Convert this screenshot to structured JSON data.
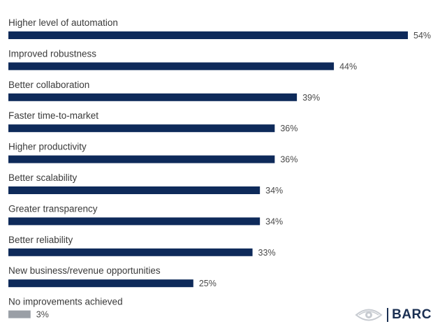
{
  "chart_data": {
    "type": "bar",
    "orientation": "horizontal",
    "categories": [
      "Higher level of automation",
      "Improved robustness",
      "Better collaboration",
      "Faster time-to-market",
      "Higher productivity",
      "Better scalability",
      "Greater transparency",
      "Better reliability",
      "New business/revenue opportunities",
      "No improvements achieved"
    ],
    "values": [
      54,
      44,
      39,
      36,
      36,
      34,
      34,
      33,
      25,
      3
    ],
    "value_labels": [
      "54%",
      "44%",
      "39%",
      "36%",
      "36%",
      "34%",
      "34%",
      "33%",
      "25%",
      "3%"
    ],
    "colors": [
      "#0e2a5a",
      "#0e2a5a",
      "#0e2a5a",
      "#0e2a5a",
      "#0e2a5a",
      "#0e2a5a",
      "#0e2a5a",
      "#0e2a5a",
      "#0e2a5a",
      "#9a9fa6"
    ],
    "xlim": [
      0,
      54
    ],
    "title": "",
    "xlabel": "",
    "ylabel": "",
    "grid": false
  },
  "logo": {
    "text": "BARC",
    "icon": "eye-icon",
    "color": "#1a2f52"
  }
}
